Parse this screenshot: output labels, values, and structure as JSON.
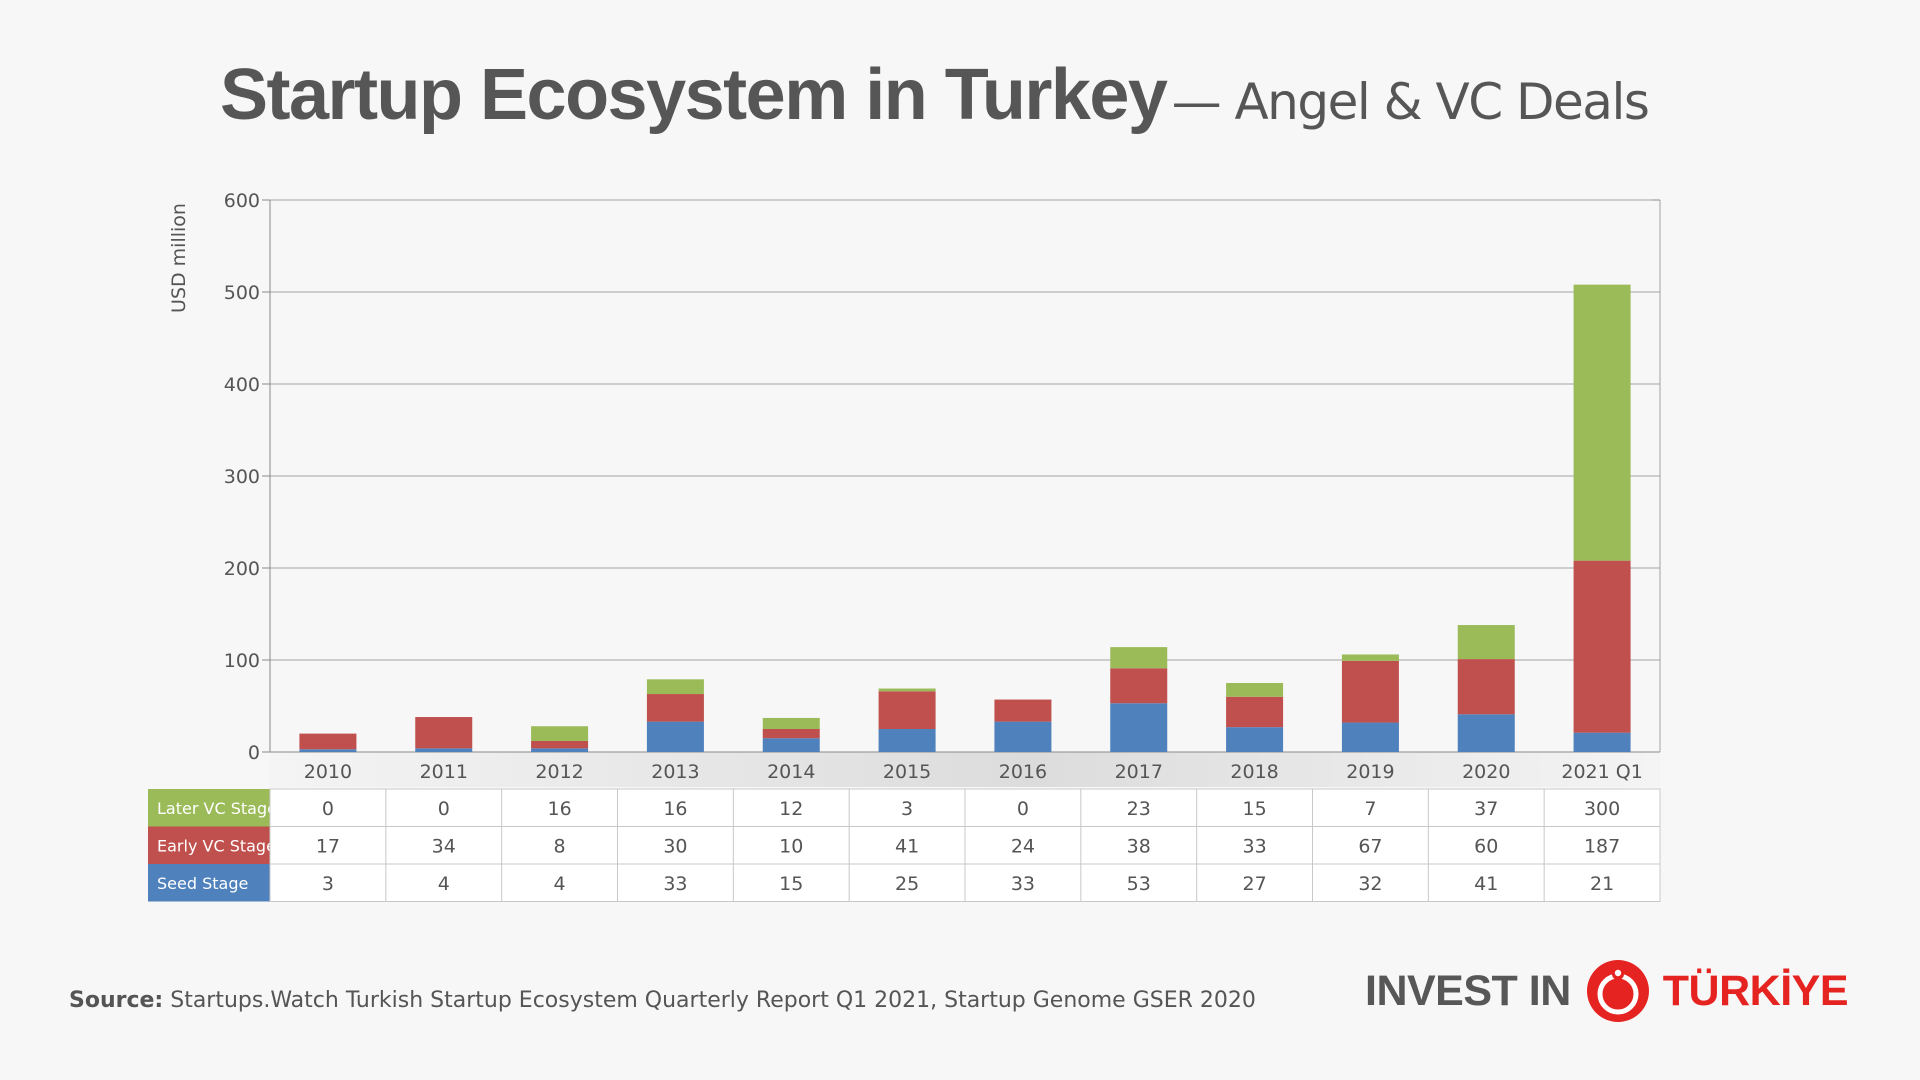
{
  "title": {
    "main": "Startup Ecosystem in Turkey",
    "sub": "— Angel & VC Deals"
  },
  "source": {
    "label": "Source:",
    "text": "Startups.Watch Turkish Startup Ecosystem Quarterly Report Q1 2021, Startup Genome GSER 2020"
  },
  "logo": {
    "prefix": "INVEST IN",
    "country": "TÜRKİYE",
    "brand_color": "#e52421"
  },
  "chart_data": {
    "type": "bar",
    "stacked": true,
    "ylabel": "USD million",
    "ylim": [
      0,
      600
    ],
    "yticks": [
      0,
      100,
      200,
      300,
      400,
      500,
      600
    ],
    "grid": true,
    "categories": [
      "2010",
      "2011",
      "2012",
      "2013",
      "2014",
      "2015",
      "2016",
      "2017",
      "2018",
      "2019",
      "2020",
      "2021 Q1"
    ],
    "series": [
      {
        "name": "Seed Stage",
        "color": "#4f81bd",
        "values": [
          3,
          4,
          4,
          33,
          15,
          25,
          33,
          53,
          27,
          32,
          41,
          21
        ]
      },
      {
        "name": "Early VC Stage",
        "color": "#c0504d",
        "values": [
          17,
          34,
          8,
          30,
          10,
          41,
          24,
          38,
          33,
          67,
          60,
          187
        ]
      },
      {
        "name": "Later VC Stage",
        "color": "#9bbb59",
        "values": [
          0,
          0,
          16,
          16,
          12,
          3,
          0,
          23,
          15,
          7,
          37,
          300
        ]
      }
    ],
    "table_row_order": [
      "Later VC Stage",
      "Early VC Stage",
      "Seed Stage"
    ]
  }
}
